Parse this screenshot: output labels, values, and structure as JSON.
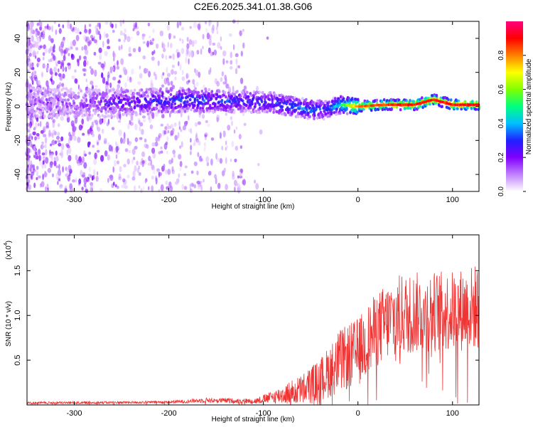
{
  "title": "C2E6.2025.341.01.38.G06",
  "chart_data": [
    {
      "type": "heatmap",
      "xlabel": "Height of straight line (km)",
      "ylabel": "Frequency (Hz)",
      "xlim": [
        -350,
        128
      ],
      "ylim": [
        -50,
        50
      ],
      "xticks": [
        -300,
        -200,
        -100,
        0,
        100
      ],
      "yticks": [
        -40,
        -20,
        0,
        20,
        40
      ],
      "colorbar": {
        "label": "Normalized spectral amplitude",
        "ticks": [
          "0.0",
          "0.2",
          "0.4",
          "0.6",
          "0.8"
        ],
        "range": [
          0,
          1
        ],
        "colormap": [
          "#ffffff",
          "#c080ff",
          "#8000ff",
          "#2020ff",
          "#00c0ff",
          "#00ff80",
          "#80ff00",
          "#ffff00",
          "#ff8000",
          "#ff0000",
          "#ff0080"
        ]
      },
      "ridge": [
        {
          "x": -350,
          "f": 2,
          "amp": 0.12
        },
        {
          "x": -300,
          "f": 2,
          "amp": 0.15
        },
        {
          "x": -260,
          "f": 2,
          "amp": 0.22
        },
        {
          "x": -220,
          "f": 3,
          "amp": 0.28
        },
        {
          "x": -180,
          "f": 4,
          "amp": 0.32
        },
        {
          "x": -150,
          "f": 3,
          "amp": 0.3
        },
        {
          "x": -120,
          "f": 3,
          "amp": 0.28
        },
        {
          "x": -90,
          "f": 2,
          "amp": 0.3
        },
        {
          "x": -70,
          "f": 0,
          "amp": 0.35
        },
        {
          "x": -50,
          "f": -2,
          "amp": 0.36
        },
        {
          "x": -35,
          "f": -2,
          "amp": 0.3
        },
        {
          "x": -20,
          "f": 1,
          "amp": 0.45
        },
        {
          "x": 0,
          "f": 0,
          "amp": 0.8
        },
        {
          "x": 30,
          "f": 1,
          "amp": 0.85
        },
        {
          "x": 60,
          "f": 1,
          "amp": 0.9
        },
        {
          "x": 80,
          "f": 4,
          "amp": 0.9
        },
        {
          "x": 100,
          "f": 1,
          "amp": 0.88
        },
        {
          "x": 128,
          "f": 1,
          "amp": 0.9
        }
      ]
    },
    {
      "type": "line",
      "xlabel": "Height of straight line (km)",
      "ylabel": "SNR (10 * v/v)",
      "y_multiplier": "(x10",
      "y_multiplier_exp": "4",
      "xlim": [
        -350,
        128
      ],
      "ylim": [
        0,
        1.9
      ],
      "xticks": [
        -300,
        -200,
        -100,
        0,
        100
      ],
      "yticks": [
        "0.5",
        "1.0",
        "1.5"
      ],
      "color": "#ee3333",
      "envelope": [
        {
          "x": -350,
          "base": 0.02,
          "amp": 0.02
        },
        {
          "x": -200,
          "base": 0.03,
          "amp": 0.02
        },
        {
          "x": -160,
          "base": 0.05,
          "amp": 0.04
        },
        {
          "x": -110,
          "base": 0.04,
          "amp": 0.04
        },
        {
          "x": -90,
          "base": 0.08,
          "amp": 0.1
        },
        {
          "x": -60,
          "base": 0.15,
          "amp": 0.25
        },
        {
          "x": -40,
          "base": 0.25,
          "amp": 0.35
        },
        {
          "x": -20,
          "base": 0.45,
          "amp": 0.5
        },
        {
          "x": 0,
          "base": 0.55,
          "amp": 0.55
        },
        {
          "x": 20,
          "base": 0.8,
          "amp": 0.6
        },
        {
          "x": 40,
          "base": 0.95,
          "amp": 0.65
        },
        {
          "x": 70,
          "base": 1.0,
          "amp": 0.65
        },
        {
          "x": 100,
          "base": 1.0,
          "amp": 0.65
        },
        {
          "x": 128,
          "base": 1.05,
          "amp": 0.7
        }
      ]
    }
  ]
}
